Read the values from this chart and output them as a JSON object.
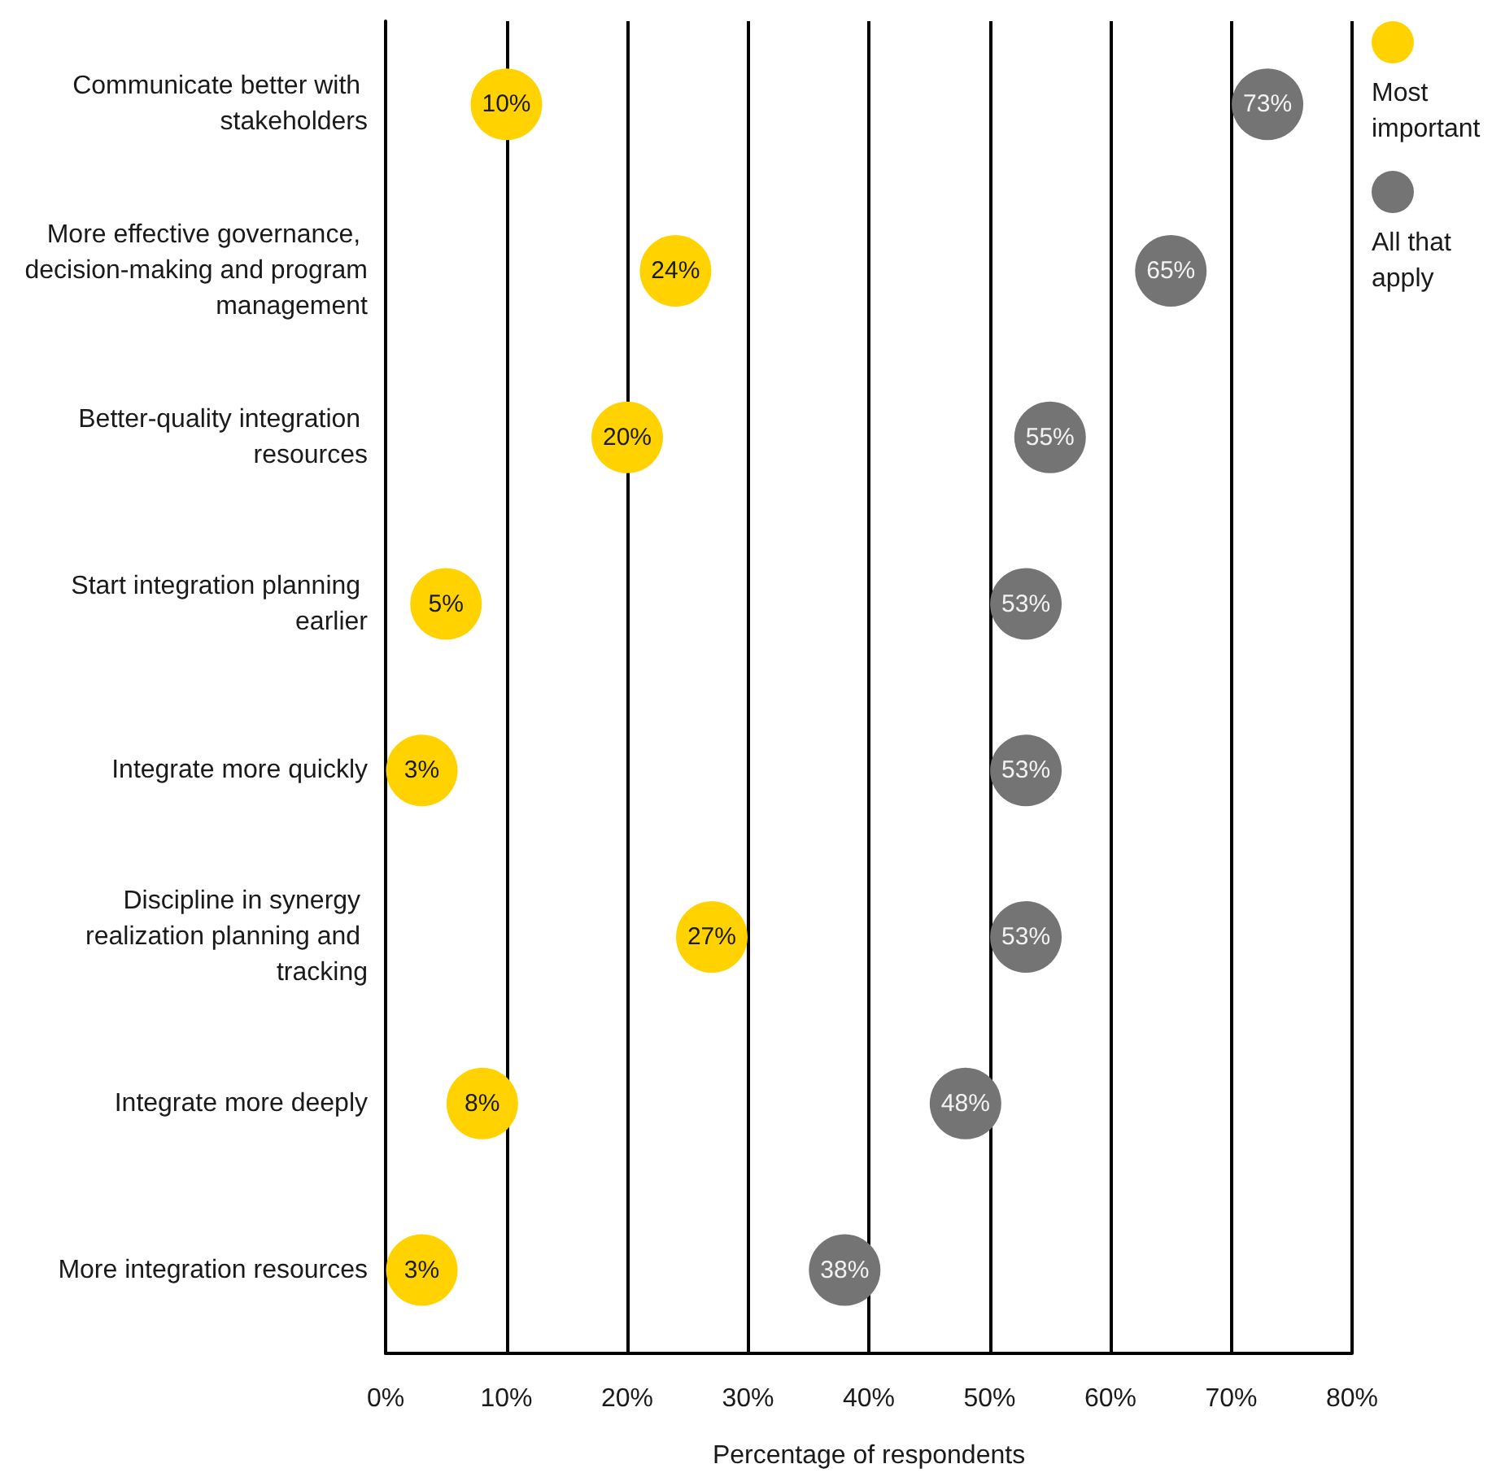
{
  "chart_data": {
    "type": "scatter",
    "orientation": "horizontal",
    "xlabel": "Percentage of respondents",
    "categories": [
      "Communicate better with stakeholders",
      "More effective governance, decision-making and program management",
      "Better-quality integration resources",
      "Start integration planning earlier",
      "Integrate more quickly",
      "Discipline in synergy realization planning and tracking",
      "Integrate more deeply",
      "More integration resources"
    ],
    "series": [
      {
        "name": "Most important",
        "color": "#ffd200",
        "values": [
          10,
          24,
          20,
          5,
          3,
          27,
          8,
          3
        ],
        "value_labels": [
          "10%",
          "24%",
          "20%",
          "5%",
          "3%",
          "27%",
          "8%",
          "3%"
        ]
      },
      {
        "name": "All that apply",
        "color": "#747474",
        "values": [
          73,
          65,
          55,
          53,
          53,
          53,
          48,
          38
        ],
        "value_labels": [
          "73%",
          "65%",
          "55%",
          "53%",
          "53%",
          "53%",
          "48%",
          "38%"
        ]
      }
    ],
    "xlim": [
      0,
      80
    ],
    "xticks": [
      {
        "value": 0,
        "label": "0%"
      },
      {
        "value": 10,
        "label": "10%"
      },
      {
        "value": 20,
        "label": "20%"
      },
      {
        "value": 30,
        "label": "30%"
      },
      {
        "value": 40,
        "label": "40%"
      },
      {
        "value": 50,
        "label": "50%"
      },
      {
        "value": 60,
        "label": "60%"
      },
      {
        "value": 70,
        "label": "70%"
      },
      {
        "value": 80,
        "label": "80%"
      }
    ],
    "grid": "x",
    "legend": "top right",
    "marker": "circle"
  }
}
